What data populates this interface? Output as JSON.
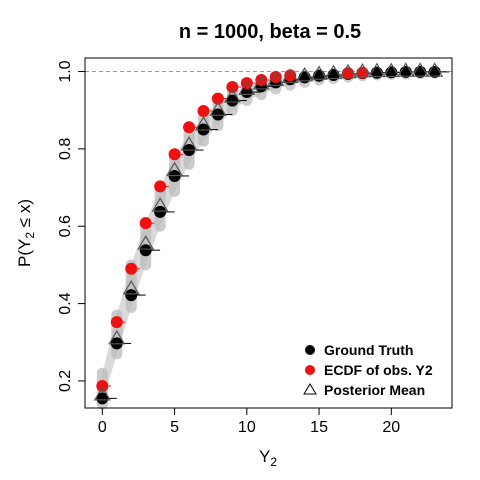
{
  "chart_data": {
    "type": "scatter",
    "title": "n = 1000, beta = 0.5",
    "xlabel": {
      "main": "Y",
      "sub": "2"
    },
    "ylabel": {
      "pre": "P(Y",
      "sub": "2",
      "post": " ≤ x)"
    },
    "xlim": [
      -1.2,
      24.2
    ],
    "ylim": [
      0.13,
      1.035
    ],
    "x_ticks": [
      0,
      5,
      10,
      15,
      20
    ],
    "y_ticks": [
      0.2,
      0.4,
      0.6,
      0.8,
      1.0
    ],
    "x_tick_labels": [
      "0",
      "5",
      "10",
      "15",
      "20"
    ],
    "y_tick_labels": [
      "0.2",
      "0.4",
      "0.6",
      "0.8",
      "1.0"
    ],
    "reference_line": {
      "y": 1.0,
      "style": "dashed"
    },
    "legend_position": "bottom-right",
    "x": [
      0,
      1,
      2,
      3,
      4,
      5,
      6,
      7,
      8,
      9,
      10,
      11,
      12,
      13,
      14,
      15,
      16,
      17,
      18,
      19,
      20,
      21,
      22,
      23
    ],
    "series": [
      {
        "name": "Ground Truth",
        "marker": "filled-circle",
        "color": "#000000",
        "values": [
          0.155,
          0.297,
          0.422,
          0.538,
          0.637,
          0.73,
          0.797,
          0.85,
          0.889,
          0.925,
          0.947,
          0.962,
          0.972,
          0.98,
          0.985,
          0.989,
          0.991,
          0.994,
          0.996,
          0.997,
          0.998,
          0.999,
          0.999,
          0.999
        ]
      },
      {
        "name": "ECDF of obs. Y2",
        "marker": "filled-circle",
        "color": "#ee1111",
        "values": [
          0.187,
          0.352,
          0.49,
          0.608,
          0.703,
          0.786,
          0.856,
          0.898,
          0.93,
          0.96,
          0.97,
          0.978,
          0.986,
          0.99,
          0.99,
          0.993,
          0.993,
          0.996,
          0.997,
          0.997,
          0.997,
          0.997,
          0.998,
          0.998
        ],
        "visible_x": [
          0,
          1,
          2,
          3,
          4,
          5,
          6,
          7,
          8,
          9,
          10,
          11,
          12,
          13,
          17,
          18
        ]
      },
      {
        "name": "Posterior Mean",
        "marker": "open-triangle",
        "color": "#555555",
        "values": [
          0.162,
          0.307,
          0.436,
          0.552,
          0.65,
          0.742,
          0.808,
          0.86,
          0.898,
          0.932,
          0.952,
          0.966,
          0.975,
          0.983,
          0.987,
          0.991,
          0.993,
          0.995,
          0.997,
          0.998,
          0.998,
          0.999,
          0.999,
          0.999
        ]
      }
    ],
    "posterior_band": {
      "color": "#bbbbbb",
      "lower": [
        0.14,
        0.27,
        0.39,
        0.5,
        0.6,
        0.69,
        0.76,
        0.82,
        0.86,
        0.9,
        0.925,
        0.94,
        0.955,
        0.965,
        0.972,
        0.978,
        0.982,
        0.986,
        0.989,
        0.991,
        0.993,
        0.994,
        0.995,
        0.996
      ],
      "upper": [
        0.22,
        0.37,
        0.5,
        0.61,
        0.7,
        0.78,
        0.84,
        0.88,
        0.915,
        0.945,
        0.96,
        0.972,
        0.98,
        0.987,
        0.99,
        0.993,
        0.995,
        0.997,
        0.998,
        0.999,
        0.999,
        1.0,
        1.0,
        1.0
      ]
    }
  }
}
